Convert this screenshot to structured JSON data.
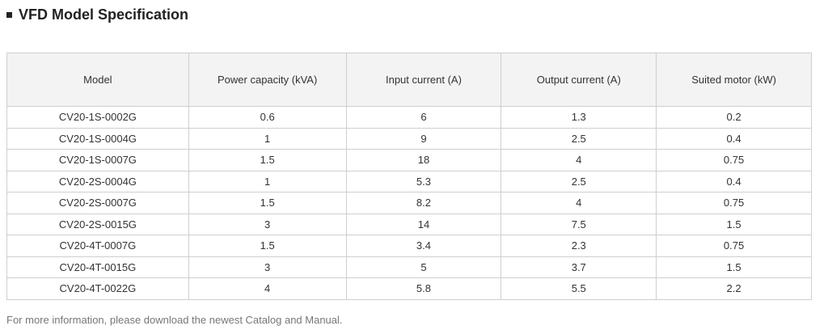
{
  "header": {
    "title": "VFD Model Specification"
  },
  "table": {
    "columns": [
      "Model",
      "Power capacity (kVA)",
      "Input current (A)",
      "Output current (A)",
      "Suited motor (kW)"
    ],
    "rows": [
      [
        "CV20-1S-0002G",
        "0.6",
        "6",
        "1.3",
        "0.2"
      ],
      [
        "CV20-1S-0004G",
        "1",
        "9",
        "2.5",
        "0.4"
      ],
      [
        "CV20-1S-0007G",
        "1.5",
        "18",
        "4",
        "0.75"
      ],
      [
        "CV20-2S-0004G",
        "1",
        "5.3",
        "2.5",
        "0.4"
      ],
      [
        "CV20-2S-0007G",
        "1.5",
        "8.2",
        "4",
        "0.75"
      ],
      [
        "CV20-2S-0015G",
        "3",
        "14",
        "7.5",
        "1.5"
      ],
      [
        "CV20-4T-0007G",
        "1.5",
        "3.4",
        "2.3",
        "0.75"
      ],
      [
        "CV20-4T-0015G",
        "3",
        "5",
        "3.7",
        "1.5"
      ],
      [
        "CV20-4T-0022G",
        "4",
        "5.8",
        "5.5",
        "2.2"
      ]
    ]
  },
  "footer": {
    "note": "For more information, please download the newest Catalog and Manual."
  }
}
